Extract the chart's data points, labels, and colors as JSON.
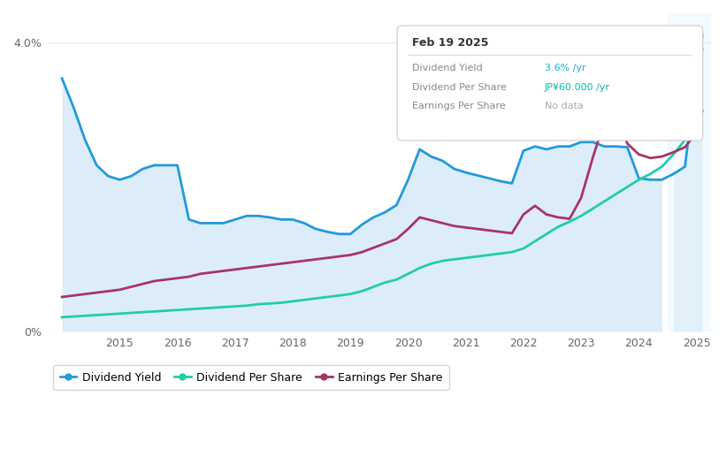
{
  "info_box": {
    "date": "Feb 19 2025",
    "rows": [
      {
        "label": "Dividend Yield",
        "value": "3.6% /yr",
        "color": "#1AAADD"
      },
      {
        "label": "Dividend Per Share",
        "value": "JP¥60.000 /yr",
        "color": "#00BBAA"
      },
      {
        "label": "Earnings Per Share",
        "value": "No data",
        "color": "#AAAAAA"
      }
    ]
  },
  "years": [
    2014.0,
    2014.2,
    2014.4,
    2014.6,
    2014.8,
    2015.0,
    2015.2,
    2015.4,
    2015.6,
    2015.8,
    2016.0,
    2016.2,
    2016.4,
    2016.6,
    2016.8,
    2017.0,
    2017.2,
    2017.4,
    2017.6,
    2017.8,
    2018.0,
    2018.2,
    2018.4,
    2018.6,
    2018.8,
    2019.0,
    2019.2,
    2019.4,
    2019.6,
    2019.8,
    2020.0,
    2020.2,
    2020.4,
    2020.6,
    2020.8,
    2021.0,
    2021.2,
    2021.4,
    2021.6,
    2021.8,
    2022.0,
    2022.2,
    2022.4,
    2022.6,
    2022.8,
    2023.0,
    2023.2,
    2023.4,
    2023.6,
    2023.8,
    2024.0,
    2024.2,
    2024.4,
    2024.6,
    2024.8,
    2025.0,
    2025.1
  ],
  "dividend_yield": [
    3.5,
    3.1,
    2.65,
    2.3,
    2.15,
    2.1,
    2.15,
    2.25,
    2.3,
    2.3,
    2.3,
    1.55,
    1.5,
    1.5,
    1.5,
    1.55,
    1.6,
    1.6,
    1.58,
    1.55,
    1.55,
    1.5,
    1.42,
    1.38,
    1.35,
    1.35,
    1.48,
    1.58,
    1.65,
    1.75,
    2.1,
    2.52,
    2.42,
    2.36,
    2.25,
    2.2,
    2.16,
    2.12,
    2.08,
    2.05,
    2.5,
    2.56,
    2.52,
    2.56,
    2.56,
    2.62,
    2.62,
    2.56,
    2.56,
    2.55,
    2.12,
    2.1,
    2.1,
    2.18,
    2.28,
    3.6,
    3.9
  ],
  "dividend_per_share": [
    0.2,
    0.21,
    0.22,
    0.23,
    0.24,
    0.25,
    0.26,
    0.27,
    0.28,
    0.29,
    0.3,
    0.31,
    0.32,
    0.33,
    0.34,
    0.35,
    0.36,
    0.38,
    0.39,
    0.4,
    0.42,
    0.44,
    0.46,
    0.48,
    0.5,
    0.52,
    0.56,
    0.62,
    0.68,
    0.72,
    0.8,
    0.88,
    0.94,
    0.98,
    1.0,
    1.02,
    1.04,
    1.06,
    1.08,
    1.1,
    1.15,
    1.25,
    1.35,
    1.45,
    1.52,
    1.6,
    1.7,
    1.8,
    1.9,
    2.0,
    2.1,
    2.18,
    2.28,
    2.45,
    2.65,
    3.0,
    4.1
  ],
  "earnings_per_share": [
    0.48,
    0.5,
    0.52,
    0.54,
    0.56,
    0.58,
    0.62,
    0.66,
    0.7,
    0.72,
    0.74,
    0.76,
    0.8,
    0.82,
    0.84,
    0.86,
    0.88,
    0.9,
    0.92,
    0.94,
    0.96,
    0.98,
    1.0,
    1.02,
    1.04,
    1.06,
    1.1,
    1.16,
    1.22,
    1.28,
    1.42,
    1.58,
    1.54,
    1.5,
    1.46,
    1.44,
    1.42,
    1.4,
    1.38,
    1.36,
    1.62,
    1.74,
    1.62,
    1.58,
    1.56,
    1.85,
    2.4,
    2.9,
    3.05,
    2.6,
    2.45,
    2.4,
    2.42,
    2.48,
    2.55,
    2.75,
    3.05
  ],
  "past_start": 2024.5,
  "x_min": 2013.75,
  "x_max": 2025.25,
  "y_min": 0.0,
  "y_max": 4.4,
  "x_ticks": [
    2015,
    2016,
    2017,
    2018,
    2019,
    2020,
    2021,
    2022,
    2023,
    2024,
    2025
  ],
  "colors": {
    "dividend_yield": "#2299DD",
    "dividend_per_share": "#22CCAA",
    "earnings_per_share": "#AA3366",
    "fill_normal": "#D6EAF8",
    "fill_past": "#D6EAF8",
    "past_bg": "#E8F4FC",
    "background": "#FFFFFF",
    "grid": "#E5E5E5"
  },
  "legend": [
    {
      "label": "Dividend Yield",
      "color": "#2299DD"
    },
    {
      "label": "Dividend Per Share",
      "color": "#22CCAA"
    },
    {
      "label": "Earnings Per Share",
      "color": "#AA3366"
    }
  ]
}
